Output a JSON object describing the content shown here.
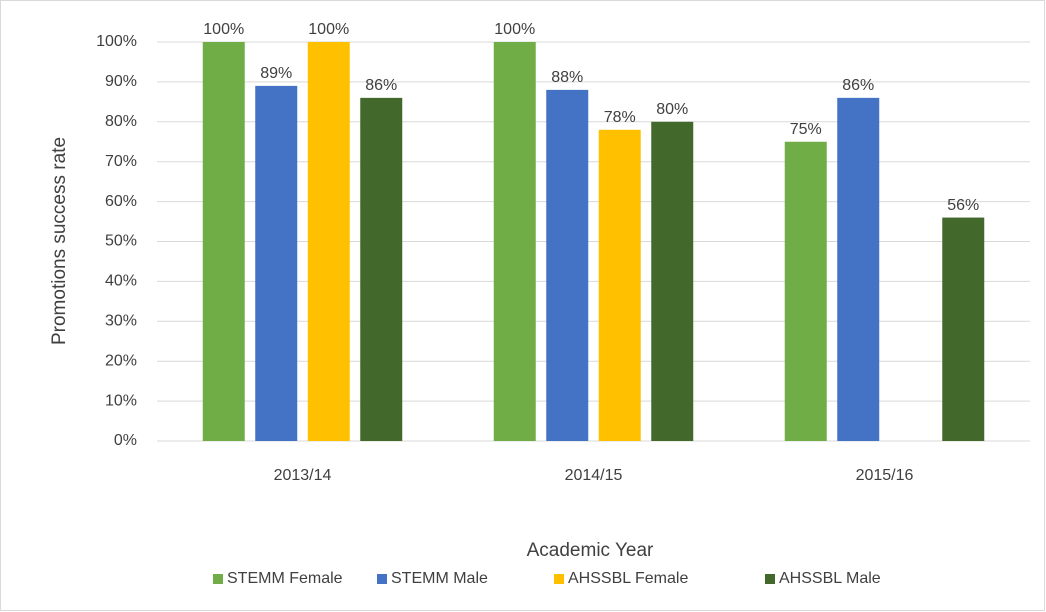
{
  "chart_data": {
    "type": "bar",
    "x_label": "Academic Year",
    "y_label": "Promotions success rate",
    "categories": [
      "2013/14",
      "2014/15",
      "2015/16"
    ],
    "series": [
      {
        "name": "STEMM Female",
        "color": "#70ad47",
        "values": [
          100,
          100,
          75
        ],
        "value_labels": [
          "100%",
          "100%",
          "75%"
        ]
      },
      {
        "name": "STEMM Male",
        "color": "#4472c4",
        "values": [
          89,
          88,
          86
        ],
        "value_labels": [
          "89%",
          "88%",
          "86%"
        ]
      },
      {
        "name": "AHSSBL Female",
        "color": "#ffc000",
        "values": [
          100,
          78,
          null
        ],
        "value_labels": [
          "100%",
          "78%",
          null
        ]
      },
      {
        "name": "AHSSBL Male",
        "color": "#43682b",
        "values": [
          86,
          80,
          56
        ],
        "value_labels": [
          "86%",
          "80%",
          "56%"
        ]
      }
    ],
    "ylim": [
      0,
      100
    ],
    "yticks": [
      {
        "value": 0,
        "label": "0%"
      },
      {
        "value": 10,
        "label": "10%"
      },
      {
        "value": 20,
        "label": "20%"
      },
      {
        "value": 30,
        "label": "30%"
      },
      {
        "value": 40,
        "label": "40%"
      },
      {
        "value": 50,
        "label": "50%"
      },
      {
        "value": 60,
        "label": "60%"
      },
      {
        "value": 70,
        "label": "70%"
      },
      {
        "value": 80,
        "label": "80%"
      },
      {
        "value": 90,
        "label": "90%"
      },
      {
        "value": 100,
        "label": "100%"
      }
    ],
    "grid": true,
    "legend": "bottom"
  }
}
